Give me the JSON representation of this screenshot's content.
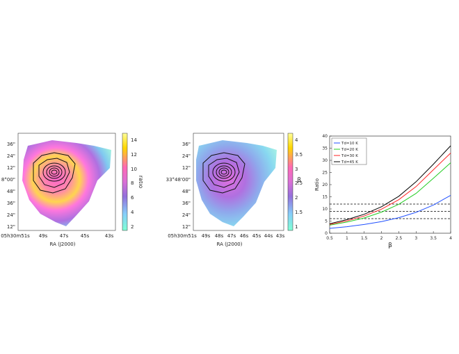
{
  "panels": [
    {
      "type": "map",
      "xlabel": "RA (J2000)",
      "ra_ticks": [
        "05h30m51s",
        "49s",
        "47s",
        "45s",
        "43s"
      ],
      "dec_ticks": [
        "36\"",
        "24\"",
        "12\"",
        "8°00\"",
        "48\"",
        "36\"",
        "24\"",
        "12\""
      ],
      "colorbar_label": "ratio",
      "colorbar_ticks": [
        "14",
        "12",
        "10",
        "8",
        "6",
        "4",
        "2"
      ],
      "colormap": [
        "#7fffd4",
        "#87cefa",
        "#9370db",
        "#da70d6",
        "#ff69b4",
        "#ffd700",
        "#ffff99"
      ]
    },
    {
      "type": "map",
      "xlabel": "RA (J2000)",
      "ra_ticks": [
        "05h30m51s",
        "49s",
        "48s",
        "47s",
        "46s",
        "45s",
        "44s",
        "43s"
      ],
      "dec_ticks": [
        "36\"",
        "24\"",
        "12\"",
        "33°48'00\"",
        "48\"",
        "36\"",
        "24\"",
        "12\""
      ],
      "colorbar_label": "β",
      "colorbar_ticks": [
        "4",
        "3.5",
        "3",
        "2.5",
        "2",
        "1.5",
        "1"
      ],
      "colormap": [
        "#7fffd4",
        "#87cefa",
        "#9370db",
        "#da70d6",
        "#ff69b4",
        "#ffd700",
        "#ffff99"
      ]
    }
  ],
  "chart_data": {
    "type": "line",
    "xlabel": "β",
    "ylabel": "Ratio",
    "xlim": [
      0.5,
      4
    ],
    "ylim": [
      0,
      40
    ],
    "x_ticks": [
      "0.5",
      "1",
      "1.5",
      "2",
      "2.5",
      "3",
      "3.5",
      "4"
    ],
    "y_ticks": [
      "0",
      "5",
      "10",
      "15",
      "20",
      "25",
      "30",
      "35",
      "40"
    ],
    "legend_position": "top-left",
    "x": [
      0.5,
      1.0,
      1.5,
      2.0,
      2.5,
      3.0,
      3.5,
      4.0
    ],
    "series": [
      {
        "name": "Td=10 K",
        "color": "#1f4fff",
        "values": [
          2.0,
          2.7,
          3.6,
          4.8,
          6.4,
          8.6,
          11.6,
          15.6
        ]
      },
      {
        "name": "Td=20 K",
        "color": "#22cc22",
        "values": [
          3.3,
          4.6,
          6.3,
          8.7,
          11.9,
          16.4,
          22.6,
          29.0
        ]
      },
      {
        "name": "Td=30 K",
        "color": "#ff2222",
        "values": [
          3.6,
          5.1,
          7.1,
          9.9,
          13.8,
          19.2,
          26.1,
          33.0
        ]
      },
      {
        "name": "Td=45 K",
        "color": "#000000",
        "values": [
          3.9,
          5.6,
          7.8,
          10.9,
          15.2,
          21.2,
          28.4,
          36.0
        ]
      }
    ],
    "hlines": [
      6.0,
      9.0,
      12.0
    ]
  }
}
